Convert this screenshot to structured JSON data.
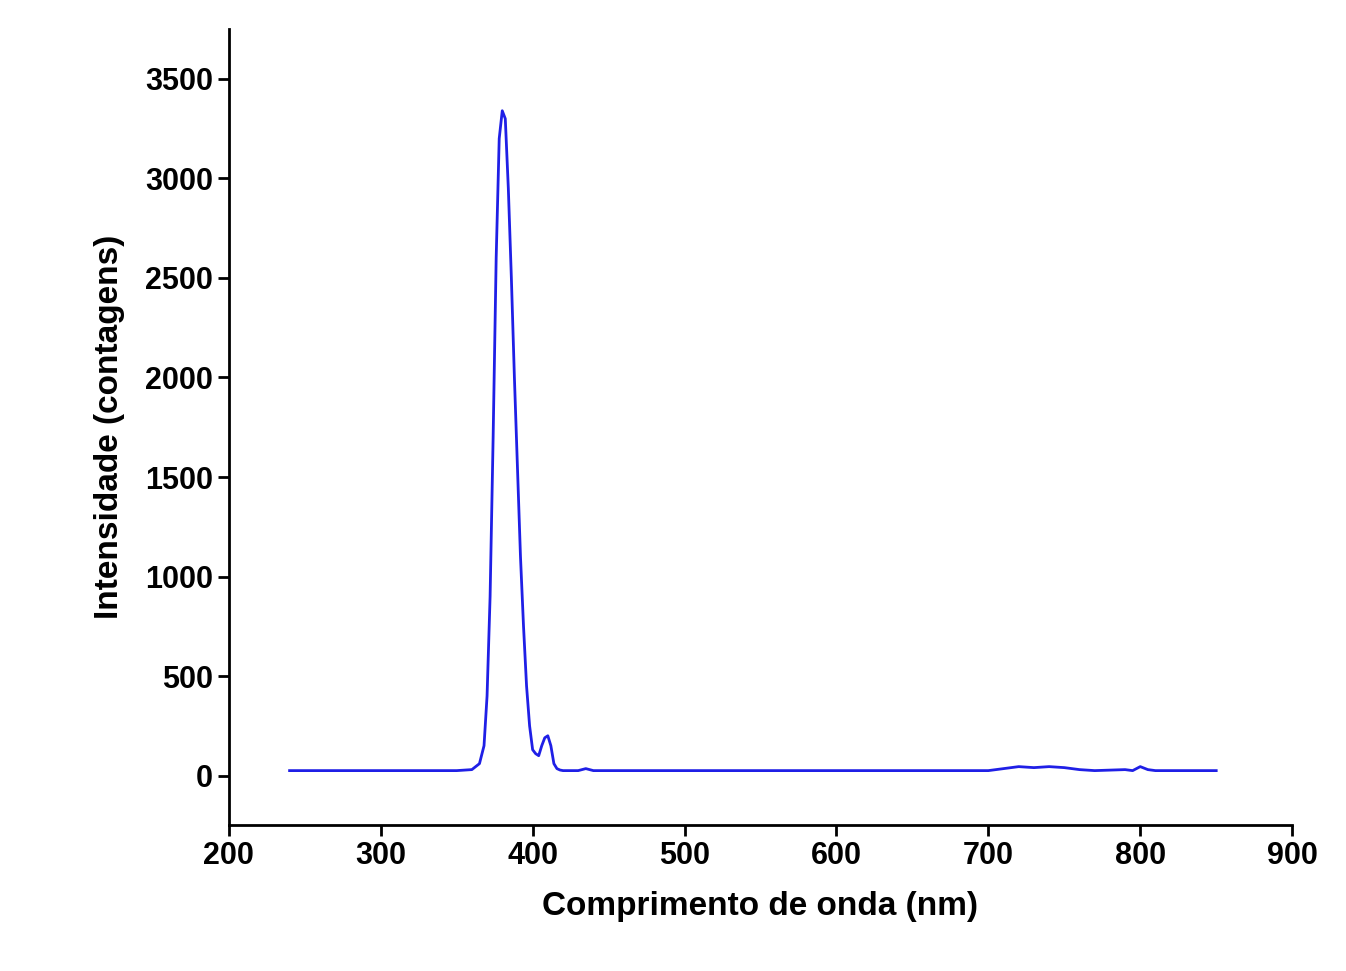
{
  "chart_data": {
    "type": "line",
    "x_label": "Comprimento de onda (nm)",
    "y_label": "Intensidade (contagens)",
    "x": [
      240,
      300,
      350,
      360,
      365,
      368,
      370,
      372,
      374,
      376,
      378,
      380,
      382,
      384,
      386,
      388,
      390,
      392,
      394,
      396,
      398,
      400,
      402,
      404,
      406,
      408,
      410,
      412,
      414,
      416,
      418,
      420,
      430,
      435,
      440,
      500,
      600,
      700,
      710,
      720,
      730,
      740,
      750,
      760,
      770,
      790,
      795,
      800,
      805,
      810,
      850
    ],
    "values": [
      25,
      25,
      25,
      30,
      60,
      150,
      400,
      900,
      1700,
      2600,
      3200,
      3340,
      3300,
      2950,
      2500,
      2000,
      1550,
      1100,
      750,
      450,
      250,
      130,
      110,
      100,
      150,
      190,
      200,
      150,
      60,
      35,
      28,
      25,
      25,
      35,
      25,
      25,
      25,
      25,
      35,
      45,
      40,
      45,
      40,
      30,
      25,
      30,
      25,
      45,
      30,
      25,
      25
    ],
    "color": "#1f1fe6",
    "line_style": "solid",
    "xlim": [
      200,
      900
    ],
    "xticks": [
      200,
      300,
      400,
      500,
      600,
      700,
      800,
      900
    ],
    "ylim": [
      -250,
      3750
    ],
    "yticks": [
      0,
      500,
      1000,
      1500,
      2000,
      2500,
      3000,
      3500
    ],
    "grid": false
  }
}
